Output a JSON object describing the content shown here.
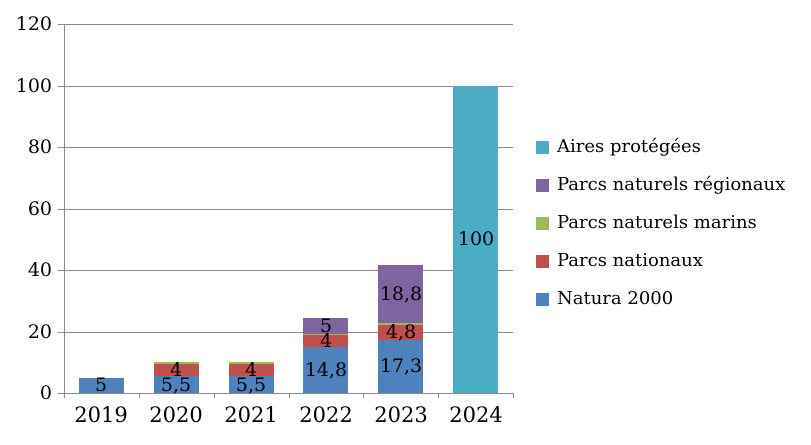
{
  "chart_data": {
    "type": "bar",
    "stacked": true,
    "title": "",
    "xlabel": "",
    "ylabel": "",
    "categories": [
      "2019",
      "2020",
      "2021",
      "2022",
      "2023",
      "2024"
    ],
    "series": [
      {
        "name": "Natura 2000",
        "color": "#4F81BD",
        "values": [
          5,
          5.5,
          5.5,
          14.8,
          17.3,
          0
        ],
        "labels": [
          "5",
          "5,5",
          "5,5",
          "14,8",
          "17,3",
          ""
        ]
      },
      {
        "name": "Parcs nationaux",
        "color": "#C0504D",
        "values": [
          0,
          4,
          4,
          4,
          4.8,
          0
        ],
        "labels": [
          "",
          "4",
          "4",
          "4",
          "4,8",
          ""
        ]
      },
      {
        "name": "Parcs naturels marins",
        "color": "#9BBB59",
        "values": [
          0,
          0.5,
          0.5,
          0.5,
          0.6,
          0
        ],
        "labels": [
          "",
          "",
          "",
          "",
          "",
          ""
        ]
      },
      {
        "name": "Parcs naturels régionaux",
        "color": "#8064A2",
        "values": [
          0,
          0,
          0,
          5,
          18.8,
          0
        ],
        "labels": [
          "",
          "",
          "",
          "5",
          "18,8",
          ""
        ]
      },
      {
        "name": "Aires protégées",
        "color": "#4BACC6",
        "values": [
          0,
          0,
          0,
          0,
          0,
          100
        ],
        "labels": [
          "",
          "",
          "",
          "",
          "",
          "100"
        ]
      }
    ],
    "ylim": [
      0,
      120
    ],
    "yticks": [
      0,
      20,
      40,
      60,
      80,
      100,
      120
    ],
    "grid": true,
    "legend_position": "right",
    "legend_order": [
      "Aires protégées",
      "Parcs naturels régionaux",
      "Parcs naturels marins",
      "Parcs nationaux",
      "Natura 2000"
    ]
  },
  "colors": {
    "axis": "#8C8C8C",
    "text": "#000000",
    "background": "#FFFFFF"
  }
}
